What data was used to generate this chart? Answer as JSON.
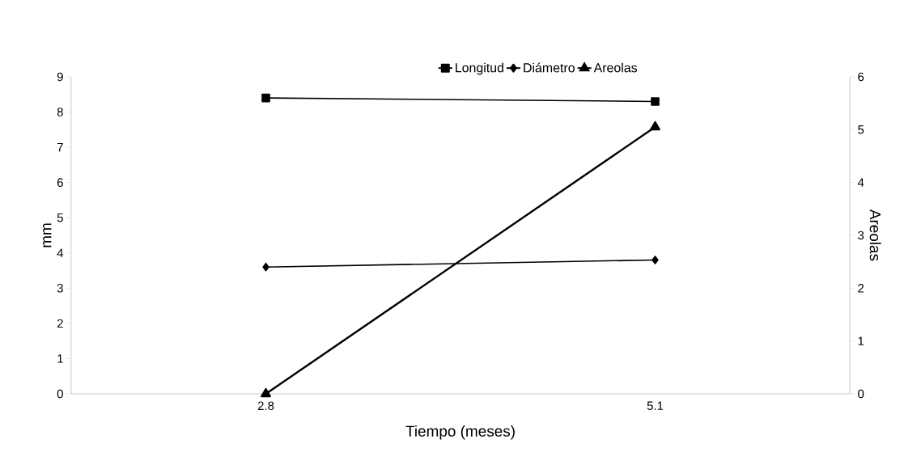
{
  "chart_data": {
    "type": "line",
    "xlabel": "Tiempo (meses)",
    "ylabel": "mm",
    "y2label": "Areolas",
    "categories": [
      "2.8",
      "5.1"
    ],
    "series": [
      {
        "name": "Longitud",
        "color": "#000000",
        "marker": "square",
        "values": [
          8.4,
          8.3
        ]
      },
      {
        "name": "Diámetro",
        "color": "#000000",
        "marker": "diamond",
        "values": [
          3.6,
          3.8
        ]
      },
      {
        "name": "Areolas",
        "color": "#000000",
        "marker": "triangle",
        "axis": "y2",
        "values": [
          0,
          5.05
        ]
      }
    ],
    "ylim": [
      0,
      9
    ],
    "yticks": [
      0,
      1,
      2,
      3,
      4,
      5,
      6,
      7,
      8,
      9
    ],
    "y2lim": [
      0,
      6
    ],
    "y2ticks": [
      0,
      1,
      2,
      3,
      4,
      5,
      6
    ],
    "legend": "top",
    "grid": false,
    "line_style": "solid"
  }
}
